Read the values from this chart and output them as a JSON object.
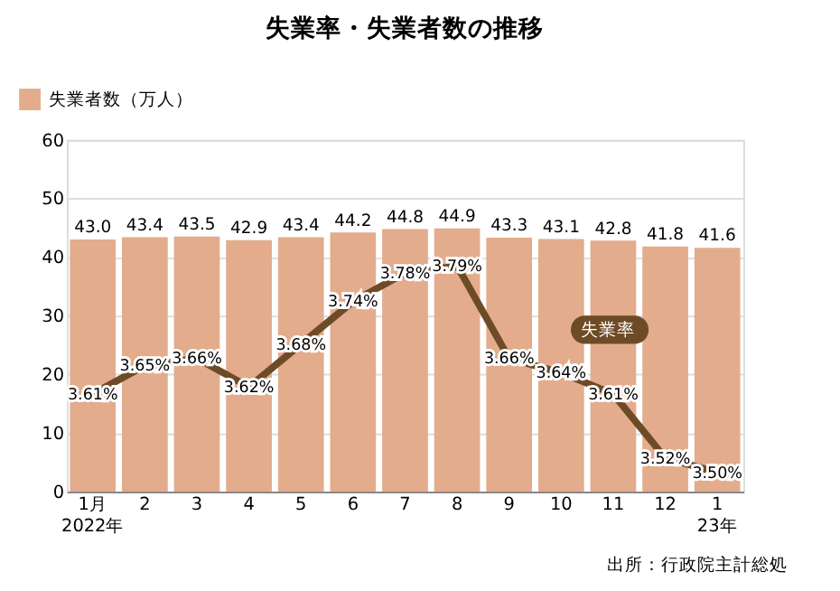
{
  "chart_data": {
    "type": "bar",
    "title": "失業率・失業者数の推移",
    "categories": [
      "1月\n2022年",
      "2",
      "3",
      "4",
      "5",
      "6",
      "7",
      "8",
      "9",
      "10",
      "11",
      "12",
      "1\n23年"
    ],
    "series": [
      {
        "name": "失業者数（万人）",
        "color": "#e3ac8c",
        "values": [
          43.0,
          43.4,
          43.5,
          42.9,
          43.4,
          44.2,
          44.8,
          44.9,
          43.3,
          43.1,
          42.8,
          41.8,
          41.6
        ],
        "value_labels": [
          "43.0",
          "43.4",
          "43.5",
          "42.9",
          "43.4",
          "44.2",
          "44.8",
          "44.9",
          "43.3",
          "43.1",
          "42.8",
          "41.8",
          "41.6"
        ]
      },
      {
        "type": "line",
        "axis": "y2",
        "color": "#6e4b27",
        "values": [
          3.61,
          3.65,
          3.66,
          3.62,
          3.68,
          3.74,
          3.78,
          3.79,
          3.66,
          3.64,
          3.61,
          3.52,
          3.5
        ],
        "value_labels": [
          "3.61%",
          "3.65%",
          "3.66%",
          "3.62%",
          "3.68%",
          "3.74%",
          "3.78%",
          "3.79%",
          "3.66%",
          "3.64%",
          "3.61%",
          "3.52%",
          "3.50%"
        ]
      }
    ],
    "ylim": [
      0,
      60
    ],
    "yticks": [
      0,
      10,
      20,
      30,
      40,
      50,
      60
    ],
    "y2lim": [
      3.473,
      3.967
    ],
    "grid": "y",
    "legend": "top left",
    "marker": "none",
    "line_style": "solid",
    "annotations": [
      "失業率",
      "出所：行政院主計総処"
    ]
  }
}
